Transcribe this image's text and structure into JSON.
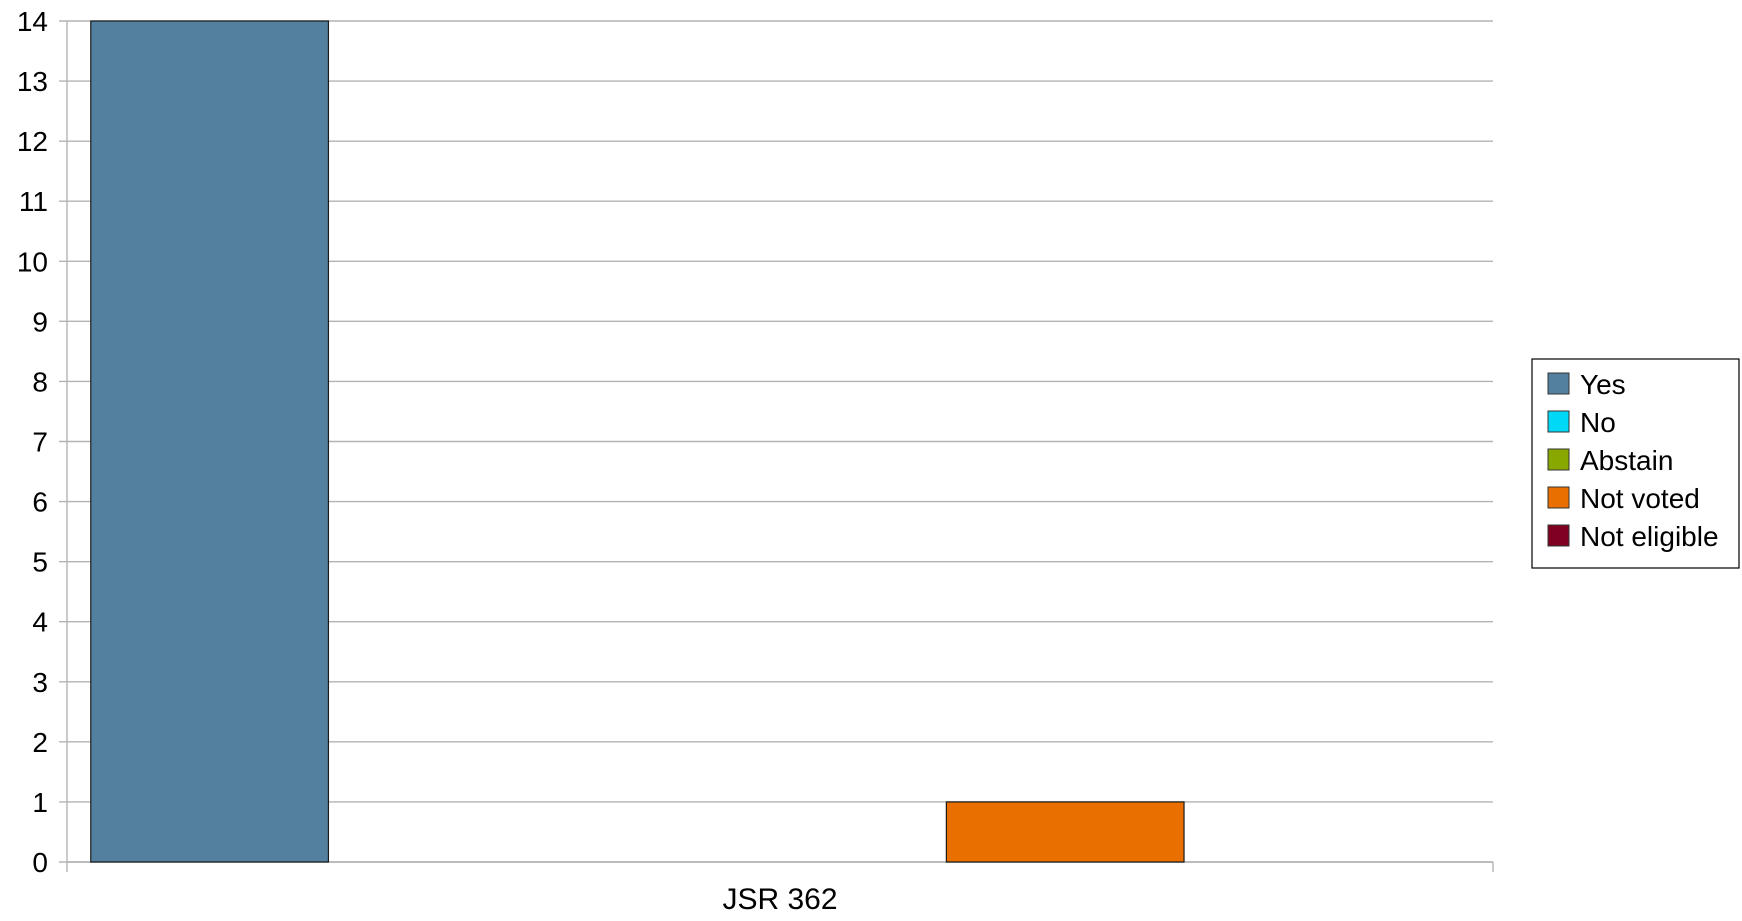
{
  "chart_data": {
    "type": "bar",
    "title": "",
    "xlabel": "",
    "ylabel": "",
    "categories": [
      "JSR 362"
    ],
    "ylim": [
      0,
      14
    ],
    "yticks": [
      0,
      1,
      2,
      3,
      4,
      5,
      6,
      7,
      8,
      9,
      10,
      11,
      12,
      13,
      14
    ],
    "grid": true,
    "legend_position": "right",
    "series": [
      {
        "name": "Yes",
        "values": [
          14
        ],
        "color": "#53809f"
      },
      {
        "name": "No",
        "values": [
          0
        ],
        "color": "#00d8f8"
      },
      {
        "name": "Abstain",
        "values": [
          0
        ],
        "color": "#88a800"
      },
      {
        "name": "Not voted",
        "values": [
          1
        ],
        "color": "#e86f00"
      },
      {
        "name": "Not eligible",
        "values": [
          0
        ],
        "color": "#7f0020"
      }
    ]
  }
}
